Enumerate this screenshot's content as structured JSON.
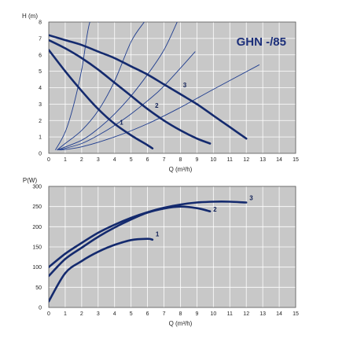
{
  "chart_data": [
    {
      "type": "line",
      "title": "GHN -/85",
      "ylabel": "H (m)",
      "xlabel": "Q (m³/h)",
      "xlim": [
        0,
        15
      ],
      "ylim": [
        0,
        8
      ],
      "x_ticks": [
        "0",
        "1",
        "2",
        "3",
        "4",
        "5",
        "6",
        "7",
        "8",
        "9",
        "10",
        "11",
        "12",
        "13",
        "14",
        "15"
      ],
      "y_ticks": [
        "0",
        "1",
        "2",
        "3",
        "4",
        "5",
        "6",
        "7",
        "8"
      ],
      "grid": true,
      "colors": {
        "background": "#c8c8c8",
        "grid": "#ffffff",
        "curve": "#142a6e",
        "system": "#1f3d8f"
      },
      "series": [
        {
          "name": "1",
          "x": [
            0,
            1,
            2,
            3,
            4,
            5,
            6,
            6.3
          ],
          "y": [
            6.3,
            5.0,
            3.8,
            2.7,
            1.8,
            1.1,
            0.5,
            0.3
          ]
        },
        {
          "name": "2",
          "x": [
            0,
            1,
            2,
            3,
            4,
            5,
            6,
            7,
            8,
            9,
            9.8
          ],
          "y": [
            6.9,
            6.4,
            5.8,
            5.1,
            4.3,
            3.5,
            2.7,
            2.0,
            1.4,
            0.9,
            0.6
          ]
        },
        {
          "name": "3",
          "x": [
            0,
            1,
            2,
            3,
            4,
            5,
            6,
            7,
            8,
            9,
            10,
            11,
            12
          ],
          "y": [
            7.2,
            6.9,
            6.6,
            6.2,
            5.8,
            5.3,
            4.8,
            4.2,
            3.6,
            3.0,
            2.3,
            1.6,
            0.9
          ]
        }
      ],
      "system_curves": [
        {
          "x": [
            0.4,
            1,
            1.5,
            2,
            2.5,
            3.05
          ],
          "y": [
            0.2,
            1.3,
            2.9,
            5.1,
            8.0,
            8.0
          ]
        },
        {
          "x": [
            0.5,
            1,
            2,
            3,
            4,
            5,
            5.8
          ],
          "y": [
            0.2,
            0.6,
            1.4,
            2.6,
            4.4,
            6.8,
            8.0
          ]
        },
        {
          "x": [
            0.5,
            2,
            3,
            4,
            5,
            6,
            7,
            7.8
          ],
          "y": [
            0.2,
            0.8,
            1.5,
            2.4,
            3.5,
            4.8,
            6.3,
            8.0
          ]
        },
        {
          "x": [
            0.6,
            2,
            3,
            4,
            5,
            6,
            7,
            8.9
          ],
          "y": [
            0.2,
            0.6,
            1.1,
            1.7,
            2.4,
            3.2,
            4.1,
            6.2
          ]
        },
        {
          "x": [
            0.7,
            2,
            4,
            6,
            8,
            10,
            12.8
          ],
          "y": [
            0.2,
            0.4,
            1.0,
            1.8,
            2.8,
            3.9,
            5.4
          ]
        }
      ]
    },
    {
      "type": "line",
      "title": "",
      "ylabel": "P(W)",
      "xlabel": "Q (m³/h)",
      "xlim": [
        0,
        15
      ],
      "ylim": [
        0,
        300
      ],
      "x_ticks": [
        "0",
        "1",
        "2",
        "3",
        "4",
        "5",
        "6",
        "7",
        "8",
        "9",
        "10",
        "11",
        "12",
        "13",
        "14",
        "15"
      ],
      "y_ticks": [
        "0",
        "50",
        "100",
        "150",
        "200",
        "250",
        "300"
      ],
      "grid": true,
      "colors": {
        "background": "#c8c8c8",
        "grid": "#ffffff",
        "curve": "#142a6e"
      },
      "series": [
        {
          "name": "1",
          "x": [
            0,
            1,
            2,
            3,
            4,
            5,
            6,
            6.3
          ],
          "y": [
            15,
            85,
            115,
            138,
            155,
            167,
            170,
            168
          ]
        },
        {
          "name": "2",
          "x": [
            0,
            1,
            2,
            3,
            4,
            5,
            6,
            7,
            8,
            9,
            9.8
          ],
          "y": [
            78,
            120,
            148,
            175,
            198,
            218,
            235,
            245,
            250,
            246,
            238
          ]
        },
        {
          "name": "3",
          "x": [
            0,
            1,
            2,
            3,
            4,
            5,
            6,
            7,
            8,
            9,
            10,
            11,
            12
          ],
          "y": [
            100,
            133,
            160,
            185,
            205,
            222,
            236,
            247,
            255,
            260,
            262,
            262,
            260
          ]
        }
      ]
    }
  ]
}
